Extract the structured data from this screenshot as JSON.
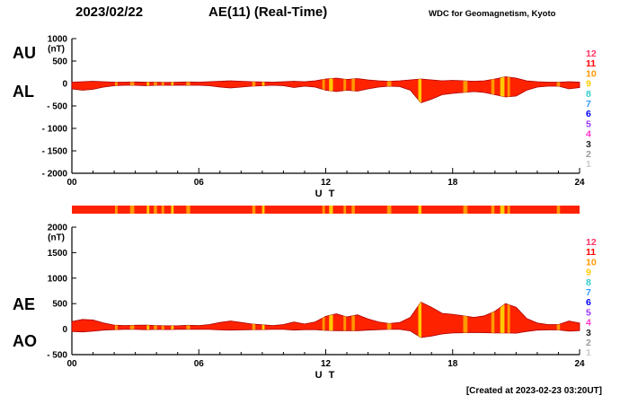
{
  "header": {
    "date": "2023/02/22",
    "title": "AE(11) (Real-Time)",
    "source": "WDC for Geomagnetism, Kyoto"
  },
  "footer": {
    "created": "[Created at 2023-02-23 03:20UT]"
  },
  "station_legend": {
    "counts": [
      "12",
      "11",
      "10",
      "9",
      "8",
      "7",
      "6",
      "5",
      "4",
      "3",
      "2",
      "1"
    ],
    "colors": [
      "#ff3366",
      "#ff0000",
      "#ff9900",
      "#ffcc00",
      "#33cccc",
      "#3399ff",
      "#0000ff",
      "#9933ff",
      "#ff33cc",
      "#222222",
      "#999999",
      "#cccccc"
    ]
  },
  "availability_bar": {
    "base_color": "#ff2200"
  },
  "stripes": [
    {
      "hour": 2.1,
      "width": 0.12,
      "color": "#ff9900"
    },
    {
      "hour": 2.85,
      "width": 0.2,
      "color": "#ff9900"
    },
    {
      "hour": 3.6,
      "width": 0.12,
      "color": "#ffcc00"
    },
    {
      "hour": 3.95,
      "width": 0.15,
      "color": "#ff9900"
    },
    {
      "hour": 4.3,
      "width": 0.12,
      "color": "#ff9900"
    },
    {
      "hour": 4.75,
      "width": 0.12,
      "color": "#ffcc00"
    },
    {
      "hour": 5.5,
      "width": 0.18,
      "color": "#ff9900"
    },
    {
      "hour": 8.6,
      "width": 0.15,
      "color": "#ff9900"
    },
    {
      "hour": 9.05,
      "width": 0.12,
      "color": "#ffcc00"
    },
    {
      "hour": 11.9,
      "width": 0.12,
      "color": "#ff9900"
    },
    {
      "hour": 12.25,
      "width": 0.18,
      "color": "#ffcc00"
    },
    {
      "hour": 12.9,
      "width": 0.12,
      "color": "#ff9900"
    },
    {
      "hour": 13.3,
      "width": 0.15,
      "color": "#ff9900"
    },
    {
      "hour": 15.0,
      "width": 0.2,
      "color": "#ff9900"
    },
    {
      "hour": 16.45,
      "width": 0.15,
      "color": "#ffcc00"
    },
    {
      "hour": 18.6,
      "width": 0.2,
      "color": "#ff9900"
    },
    {
      "hour": 19.9,
      "width": 0.15,
      "color": "#ff9900"
    },
    {
      "hour": 20.35,
      "width": 0.2,
      "color": "#ffcc00"
    },
    {
      "hour": 20.65,
      "width": 0.12,
      "color": "#ff9900"
    },
    {
      "hour": 23.0,
      "width": 0.15,
      "color": "#ff9900"
    }
  ],
  "chart_data": [
    {
      "type": "area",
      "title": "AU / AL indices",
      "ylabel": "(nT)",
      "xlabel": "U T",
      "ylim": [
        -2000,
        1000
      ],
      "yticks": [
        1000,
        500,
        0,
        -500,
        -1000,
        -1500,
        -2000
      ],
      "xlim": [
        0,
        24
      ],
      "xtick_hours": [
        0,
        6,
        12,
        18,
        24
      ],
      "xticks": [
        "00",
        "06",
        "12",
        "18",
        "24"
      ],
      "left_labels": [
        "AU",
        "AL"
      ],
      "fill_color": "#ff2200",
      "edge_color": "#aa0000",
      "x_hours": [
        0,
        0.5,
        1,
        1.5,
        2,
        2.5,
        3,
        3.5,
        4,
        4.5,
        5,
        5.5,
        6,
        6.5,
        7,
        7.5,
        8,
        8.5,
        9,
        9.5,
        10,
        10.5,
        11,
        11.5,
        12,
        12.5,
        13,
        13.5,
        14,
        14.5,
        15,
        15.5,
        16,
        16.5,
        17,
        17.5,
        18,
        18.5,
        19,
        19.5,
        20,
        20.5,
        21,
        21.5,
        22,
        22.5,
        23,
        23.5,
        24
      ],
      "series": [
        {
          "name": "AU",
          "values": [
            30,
            40,
            50,
            40,
            30,
            30,
            35,
            30,
            30,
            25,
            30,
            35,
            30,
            40,
            50,
            60,
            50,
            40,
            35,
            30,
            40,
            50,
            40,
            60,
            100,
            120,
            90,
            110,
            80,
            60,
            50,
            60,
            80,
            100,
            80,
            60,
            70,
            60,
            50,
            60,
            100,
            150,
            120,
            60,
            40,
            30,
            30,
            40,
            30
          ]
        },
        {
          "name": "AL",
          "values": [
            -120,
            -150,
            -130,
            -80,
            -50,
            -40,
            -40,
            -50,
            -40,
            -40,
            -35,
            -40,
            -40,
            -50,
            -80,
            -100,
            -80,
            -60,
            -50,
            -40,
            -50,
            -90,
            -60,
            -80,
            -150,
            -180,
            -150,
            -170,
            -120,
            -80,
            -60,
            -70,
            -150,
            -430,
            -350,
            -250,
            -220,
            -200,
            -180,
            -200,
            -250,
            -300,
            -280,
            -150,
            -80,
            -60,
            -60,
            -120,
            -90
          ]
        }
      ]
    },
    {
      "type": "area",
      "title": "AE / AO indices",
      "ylabel": "(nT)",
      "xlabel": "U T",
      "ylim": [
        -500,
        2000
      ],
      "yticks": [
        2000,
        1500,
        1000,
        500,
        0,
        -500
      ],
      "xlim": [
        0,
        24
      ],
      "xtick_hours": [
        0,
        6,
        12,
        18,
        24
      ],
      "xticks": [
        "00",
        "06",
        "12",
        "18",
        "24"
      ],
      "left_labels": [
        "AE",
        "AO"
      ],
      "fill_color": "#ff2200",
      "edge_color": "#aa0000",
      "x_hours": [
        0,
        0.5,
        1,
        1.5,
        2,
        2.5,
        3,
        3.5,
        4,
        4.5,
        5,
        5.5,
        6,
        6.5,
        7,
        7.5,
        8,
        8.5,
        9,
        9.5,
        10,
        10.5,
        11,
        11.5,
        12,
        12.5,
        13,
        13.5,
        14,
        14.5,
        15,
        15.5,
        16,
        16.5,
        17,
        17.5,
        18,
        18.5,
        19,
        19.5,
        20,
        20.5,
        21,
        21.5,
        22,
        22.5,
        23,
        23.5,
        24
      ],
      "series": [
        {
          "name": "AE",
          "values": [
            150,
            190,
            180,
            120,
            80,
            70,
            75,
            80,
            70,
            65,
            65,
            75,
            70,
            90,
            130,
            160,
            130,
            100,
            85,
            70,
            90,
            140,
            100,
            140,
            250,
            300,
            240,
            280,
            200,
            140,
            110,
            130,
            230,
            530,
            430,
            310,
            290,
            260,
            230,
            260,
            350,
            500,
            430,
            210,
            120,
            90,
            90,
            160,
            120
          ]
        },
        {
          "name": "AO",
          "values": [
            -45,
            -55,
            -40,
            -20,
            -10,
            -5,
            -3,
            -10,
            -5,
            -8,
            -3,
            -3,
            -5,
            -5,
            -15,
            -20,
            -15,
            -10,
            -8,
            -5,
            -5,
            -20,
            -10,
            -10,
            -25,
            -30,
            -30,
            -30,
            -20,
            -10,
            -5,
            -5,
            -35,
            -165,
            -135,
            -95,
            -75,
            -70,
            -65,
            -70,
            -75,
            -75,
            -80,
            -45,
            -20,
            -15,
            -15,
            -40,
            -30
          ]
        }
      ]
    }
  ]
}
